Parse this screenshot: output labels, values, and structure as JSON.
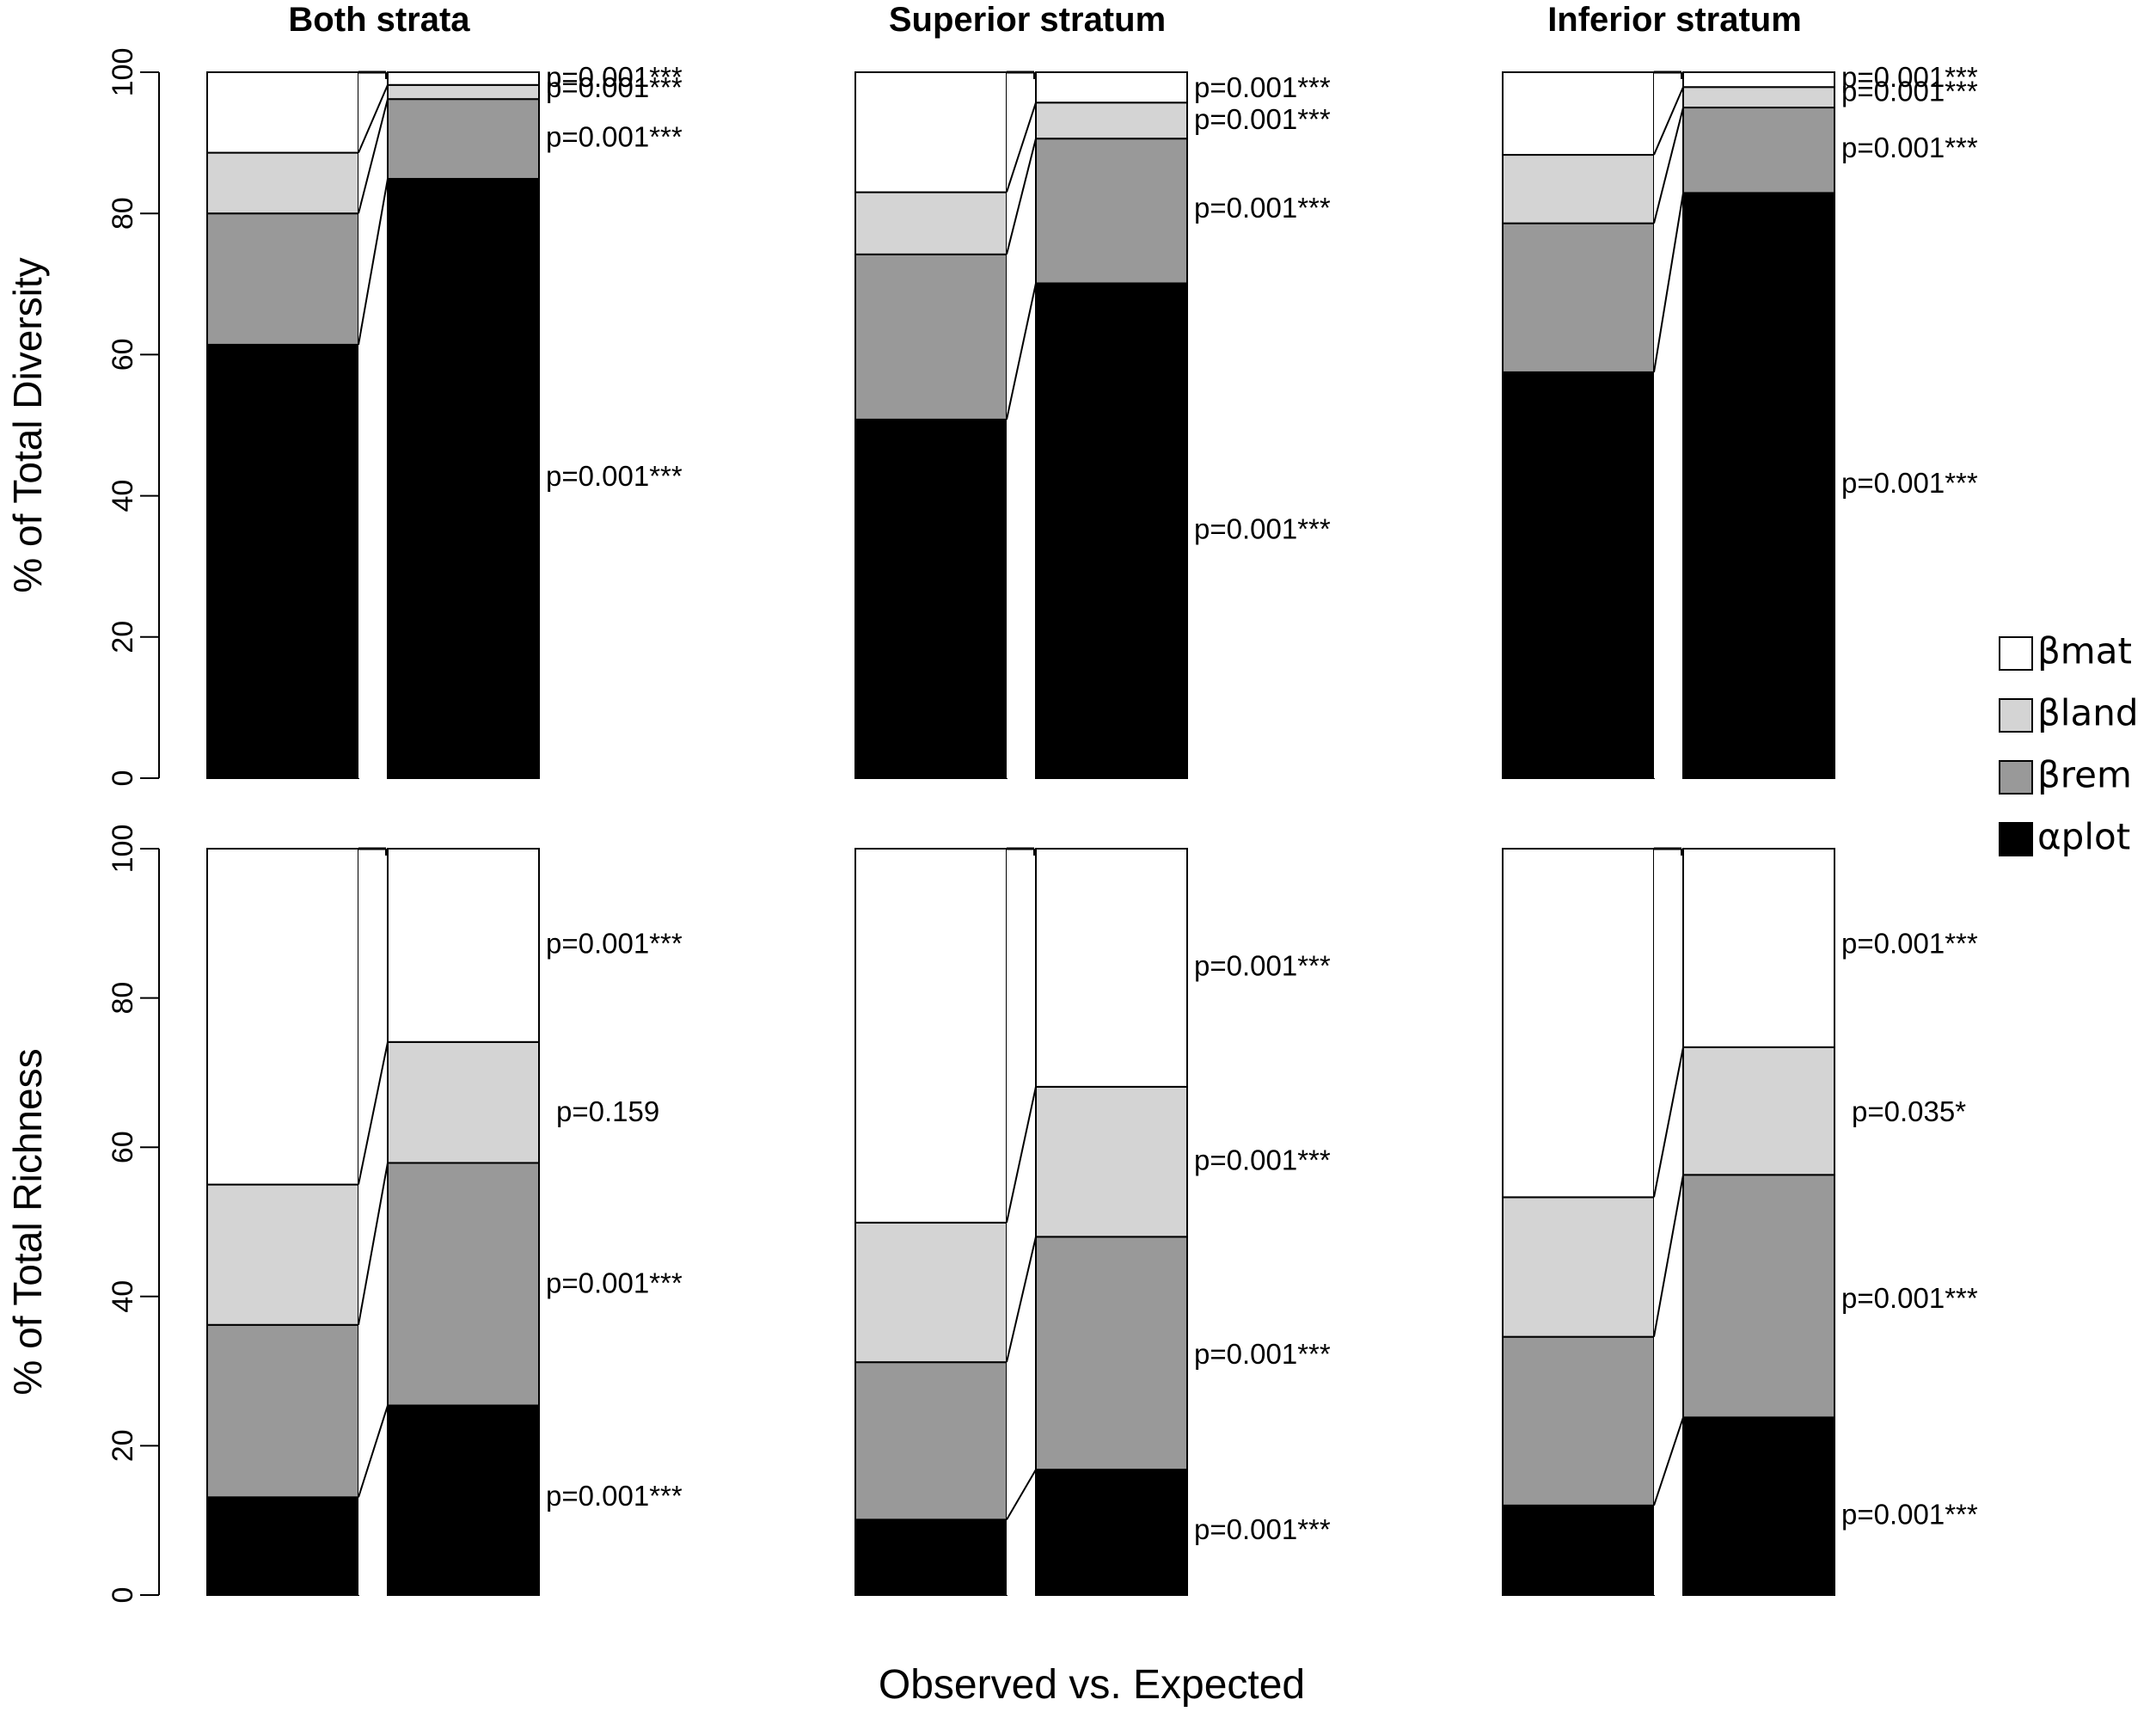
{
  "chart_data": {
    "type": "bar",
    "subtype": "stacked",
    "xlabel": "Observed vs. Expected",
    "categories": [
      "Observed",
      "Expected"
    ],
    "component_order": [
      "αplot",
      "βrem",
      "βland",
      "βmat"
    ],
    "colors": {
      "αplot": "#000000",
      "βrem": "#999999",
      "βland": "#d4d4d4",
      "βmat": "#ffffff"
    },
    "legend": {
      "placement": "right",
      "entries": [
        {
          "key": "βmat",
          "label": "βmat"
        },
        {
          "key": "βland",
          "label": "βland"
        },
        {
          "key": "βrem",
          "label": "βrem"
        },
        {
          "key": "αplot",
          "label": "αplot"
        }
      ]
    },
    "panels": [
      {
        "row": 0,
        "col": 0,
        "title": "Both strata",
        "ylabel": "% of Total Diversity",
        "ylim": [
          0,
          100
        ],
        "yticks": [
          "0",
          "20",
          "40",
          "60",
          "80",
          "100"
        ],
        "observed": {
          "αplot": 61.4,
          "βrem": 18.6,
          "βland": 8.6,
          "βmat": 11.4
        },
        "expected": {
          "αplot": 84.9,
          "βrem": 11.3,
          "βland": 2.0,
          "βmat": 1.8
        },
        "pvalues": [
          {
            "text": "p=0.001***",
            "level": 99.0
          },
          {
            "text": "p=0.001***",
            "level": 97.5
          },
          {
            "text": "p=0.001***",
            "level": 90.5
          },
          {
            "text": "p=0.001***",
            "level": 42.5
          }
        ]
      },
      {
        "row": 0,
        "col": 1,
        "title": "Superior stratum",
        "ylabel": "",
        "ylim": [
          0,
          100
        ],
        "yticks": [],
        "observed": {
          "αplot": 50.8,
          "βrem": 23.4,
          "βland": 8.8,
          "βmat": 17.0
        },
        "expected": {
          "αplot": 70.1,
          "βrem": 20.5,
          "βland": 5.1,
          "βmat": 4.3
        },
        "pvalues": [
          {
            "text": "p=0.001***",
            "level": 97.5
          },
          {
            "text": "p=0.001***",
            "level": 93.0
          },
          {
            "text": "p=0.001***",
            "level": 80.5
          },
          {
            "text": "p=0.001***",
            "level": 35.0
          }
        ]
      },
      {
        "row": 0,
        "col": 2,
        "title": "Inferior stratum",
        "ylabel": "",
        "ylim": [
          0,
          100
        ],
        "yticks": [],
        "observed": {
          "αplot": 57.5,
          "βrem": 21.1,
          "βland": 9.7,
          "βmat": 11.7
        },
        "expected": {
          "αplot": 82.9,
          "βrem": 12.1,
          "βland": 2.9,
          "βmat": 2.1
        },
        "pvalues": [
          {
            "text": "p=0.001***",
            "level": 99.0
          },
          {
            "text": "p=0.001***",
            "level": 97.0
          },
          {
            "text": "p=0.001***",
            "level": 89.0
          },
          {
            "text": "p=0.001***",
            "level": 41.5
          }
        ]
      },
      {
        "row": 1,
        "col": 0,
        "title": "",
        "ylabel": "% of Total Richness",
        "ylim": [
          0,
          100
        ],
        "yticks": [
          "0",
          "20",
          "40",
          "60",
          "80",
          "100"
        ],
        "observed": {
          "αplot": 13.1,
          "βrem": 23.1,
          "βland": 18.8,
          "βmat": 45.0
        },
        "expected": {
          "αplot": 25.4,
          "βrem": 32.5,
          "βland": 16.2,
          "βmat": 25.9
        },
        "pvalues": [
          {
            "text": "p=0.001***",
            "level": 87.0
          },
          {
            "text": "p=0.159",
            "level": 64.5
          },
          {
            "text": "p=0.001***",
            "level": 41.5
          },
          {
            "text": "p=0.001***",
            "level": 13.0
          }
        ]
      },
      {
        "row": 1,
        "col": 1,
        "title": "",
        "ylabel": "",
        "ylim": [
          0,
          100
        ],
        "yticks": [],
        "observed": {
          "αplot": 10.1,
          "βrem": 21.1,
          "βland": 18.7,
          "βmat": 50.1
        },
        "expected": {
          "αplot": 16.8,
          "βrem": 31.2,
          "βland": 20.1,
          "βmat": 31.9
        },
        "pvalues": [
          {
            "text": "p=0.001***",
            "level": 84.0
          },
          {
            "text": "p=0.001***",
            "level": 58.0
          },
          {
            "text": "p=0.001***",
            "level": 32.0
          },
          {
            "text": "p=0.001***",
            "level": 8.5
          }
        ]
      },
      {
        "row": 1,
        "col": 2,
        "title": "",
        "ylabel": "",
        "ylim": [
          0,
          100
        ],
        "yticks": [],
        "observed": {
          "αplot": 12.0,
          "βrem": 22.6,
          "βland": 18.7,
          "βmat": 46.7
        },
        "expected": {
          "αplot": 23.8,
          "βrem": 32.5,
          "βland": 17.1,
          "βmat": 26.6
        },
        "pvalues": [
          {
            "text": "p=0.001***",
            "level": 87.0
          },
          {
            "text": "p=0.035*",
            "level": 64.5
          },
          {
            "text": "p=0.001***",
            "level": 39.5
          },
          {
            "text": "p=0.001***",
            "level": 10.5
          }
        ]
      }
    ]
  }
}
